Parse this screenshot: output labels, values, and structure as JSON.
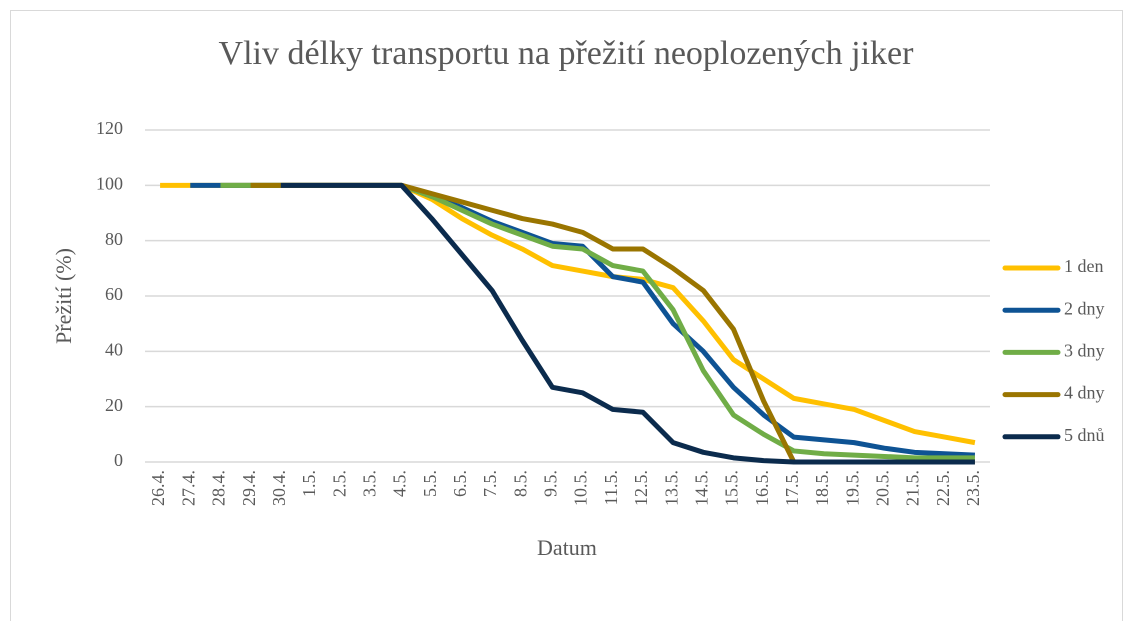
{
  "chart_data": {
    "type": "line",
    "title": "Vliv délky transportu na přežití neoplozených jiker",
    "x_label": "Datum",
    "y_label": "Přežití (%)",
    "categories": [
      "26.4.",
      "27.4.",
      "28.4.",
      "29.4.",
      "30.4.",
      "1.5.",
      "2.5.",
      "3.5.",
      "4.5.",
      "5.5.",
      "6.5.",
      "7.5.",
      "8.5.",
      "9.5.",
      "10.5.",
      "11.5.",
      "12.5.",
      "13.5.",
      "14.5.",
      "15.5.",
      "16.5.",
      "17.5.",
      "18.5.",
      "19.5.",
      "20.5.",
      "21.5.",
      "22.5.",
      "23.5."
    ],
    "series": [
      {
        "name": "1 den",
        "color": "#ffc000",
        "values": [
          100,
          100,
          100,
          100,
          100,
          100,
          100,
          100,
          100,
          95,
          88,
          82,
          77,
          71,
          69,
          67,
          66,
          63,
          51,
          37,
          30,
          23,
          21,
          19,
          15,
          11,
          9,
          7
        ]
      },
      {
        "name": "2 dny",
        "color": "#0e5394",
        "values": [
          null,
          100,
          100,
          100,
          100,
          100,
          100,
          100,
          100,
          96,
          92,
          87,
          83,
          79,
          78,
          67,
          65,
          50,
          40,
          27,
          17,
          9,
          8,
          7,
          5,
          3.5,
          3,
          2.5
        ]
      },
      {
        "name": "3 dny",
        "color": "#70ad47",
        "values": [
          null,
          null,
          100,
          100,
          100,
          100,
          100,
          100,
          100,
          96,
          91,
          86,
          82,
          78,
          77,
          71,
          69,
          55,
          33,
          17,
          10,
          4,
          3,
          2.5,
          2,
          1.5,
          1.5,
          1.5
        ]
      },
      {
        "name": "4 dny",
        "color": "#9a7500",
        "values": [
          null,
          null,
          null,
          100,
          100,
          100,
          100,
          100,
          100,
          97,
          94,
          91,
          88,
          86,
          83,
          77,
          77,
          70,
          62,
          48,
          22,
          0,
          0,
          0,
          0,
          0,
          0,
          0
        ]
      },
      {
        "name": "5 dnů",
        "color": "#0b2b4d",
        "values": [
          null,
          null,
          null,
          null,
          100,
          100,
          100,
          100,
          100,
          88,
          75,
          62,
          44,
          27,
          25,
          19,
          18,
          7,
          3.5,
          1.5,
          0.5,
          0,
          0,
          0,
          0,
          0,
          0,
          0
        ]
      }
    ],
    "ylim": [
      0,
      120
    ],
    "yticks": [
      0,
      20,
      40,
      60,
      80,
      100,
      120
    ],
    "grid": true,
    "legend": "right"
  }
}
